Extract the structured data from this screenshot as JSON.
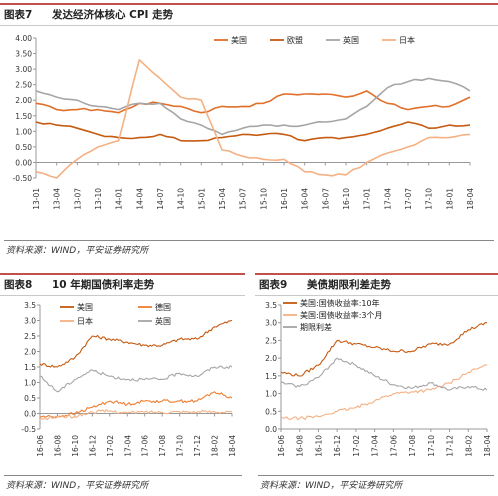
{
  "figure7": {
    "number": "图表7",
    "title": "发达经济体核心 CPI 走势",
    "source": "资料来源：WIND，平安证券研究所"
  },
  "figure8": {
    "number": "图表8",
    "title": "10 年期国债利率走势",
    "source": "资料来源：WIND，平安证券研究所"
  },
  "figure9": {
    "number": "图表9",
    "title": "美债期限利差走势",
    "source": "资料来源：WIND，平安证券研究所"
  },
  "colors": {
    "us": "#e0702a",
    "eu": "#c55a11",
    "uk": "#a6a6a6",
    "jp": "#f4b183",
    "de": "#ed7d31",
    "us10": "#c55a11",
    "us3m": "#f4b183",
    "spread": "#a6a6a6",
    "title_rule": "#c0504d"
  },
  "chart_data": [
    {
      "id": "fig7",
      "type": "line",
      "title": "发达经济体核心 CPI 走势",
      "ylim": [
        -0.5,
        4.0
      ],
      "yticks": [
        "4.00",
        "3.50",
        "3.00",
        "2.50",
        "2.00",
        "1.50",
        "1.00",
        "0.50",
        "0.00",
        "-0.50"
      ],
      "x": [
        "13-01",
        "13-04",
        "13-07",
        "13-10",
        "14-01",
        "14-04",
        "14-07",
        "14-10",
        "15-01",
        "15-04",
        "15-07",
        "15-10",
        "16-01",
        "16-04",
        "16-07",
        "16-10",
        "17-01",
        "17-04",
        "17-07",
        "17-10",
        "18-01",
        "18-04"
      ],
      "legend_position": "top-right",
      "series": [
        {
          "name": "美国",
          "color_key": "us",
          "values": [
            1.9,
            1.7,
            1.7,
            1.7,
            1.6,
            1.9,
            1.9,
            1.8,
            1.6,
            1.8,
            1.8,
            1.9,
            2.2,
            2.2,
            2.2,
            2.1,
            2.3,
            1.9,
            1.7,
            1.8,
            1.8,
            2.1
          ]
        },
        {
          "name": "欧盟",
          "color_key": "eu",
          "values": [
            1.3,
            1.2,
            1.1,
            0.9,
            0.8,
            0.8,
            0.9,
            0.7,
            0.7,
            0.8,
            0.9,
            0.9,
            0.9,
            0.7,
            0.8,
            0.8,
            0.9,
            1.1,
            1.3,
            1.1,
            1.2,
            1.2
          ]
        },
        {
          "name": "英国",
          "color_key": "uk",
          "values": [
            2.3,
            2.1,
            2.0,
            1.8,
            1.7,
            1.9,
            1.9,
            1.4,
            1.2,
            0.9,
            1.1,
            1.2,
            1.2,
            1.2,
            1.3,
            1.4,
            1.8,
            2.4,
            2.6,
            2.7,
            2.6,
            2.3
          ]
        },
        {
          "name": "日本",
          "color_key": "jp",
          "values": [
            -0.3,
            -0.5,
            0.1,
            0.5,
            0.7,
            3.3,
            2.7,
            2.1,
            2.0,
            0.4,
            0.2,
            0.1,
            0.1,
            -0.3,
            -0.4,
            -0.4,
            0.0,
            0.3,
            0.5,
            0.8,
            0.8,
            0.9
          ]
        }
      ]
    },
    {
      "id": "fig8",
      "type": "line",
      "title": "10 年期国债利率走势",
      "ylim": [
        -0.5,
        3.5
      ],
      "yticks": [
        "3.5",
        "3.0",
        "2.5",
        "2.0",
        "1.5",
        "1.0",
        "0.5",
        "0.0",
        "-0.5"
      ],
      "x": [
        "16-06",
        "16-08",
        "16-10",
        "16-12",
        "17-02",
        "17-04",
        "17-06",
        "17-08",
        "17-10",
        "17-12",
        "18-02",
        "18-04"
      ],
      "legend_position": "top-left",
      "series": [
        {
          "name": "美国",
          "color_key": "us10",
          "values": [
            1.6,
            1.5,
            1.8,
            2.5,
            2.4,
            2.3,
            2.2,
            2.2,
            2.4,
            2.4,
            2.8,
            3.0
          ]
        },
        {
          "name": "德国",
          "color_key": "de",
          "values": [
            -0.1,
            -0.1,
            0.0,
            0.2,
            0.4,
            0.3,
            0.4,
            0.4,
            0.4,
            0.4,
            0.7,
            0.5
          ]
        },
        {
          "name": "日本",
          "color_key": "jp",
          "values": [
            -0.2,
            -0.1,
            -0.1,
            0.05,
            0.08,
            0.02,
            0.05,
            0.04,
            0.06,
            0.05,
            0.06,
            0.04
          ]
        },
        {
          "name": "英国",
          "color_key": "uk",
          "values": [
            1.2,
            0.7,
            1.1,
            1.4,
            1.2,
            1.1,
            1.1,
            1.1,
            1.3,
            1.2,
            1.5,
            1.5
          ]
        }
      ]
    },
    {
      "id": "fig9",
      "type": "line",
      "title": "美债期限利差走势",
      "ylim": [
        0.0,
        3.5
      ],
      "yticks": [
        "3.5",
        "3.0",
        "2.5",
        "2.0",
        "1.5",
        "1.0",
        "0.5",
        "0.0"
      ],
      "x": [
        "16-06",
        "16-08",
        "16-10",
        "16-12",
        "17-02",
        "17-04",
        "17-06",
        "17-08",
        "17-10",
        "17-12",
        "18-02",
        "18-04"
      ],
      "legend_position": "top-left",
      "series": [
        {
          "name": "美国:国债收益率:10年",
          "color_key": "us10",
          "values": [
            1.6,
            1.5,
            1.8,
            2.5,
            2.4,
            2.3,
            2.2,
            2.2,
            2.4,
            2.4,
            2.8,
            3.0
          ]
        },
        {
          "name": "美国:国债收益率:3个月",
          "color_key": "us3m",
          "values": [
            0.3,
            0.3,
            0.35,
            0.5,
            0.6,
            0.8,
            1.0,
            1.05,
            1.1,
            1.3,
            1.6,
            1.8
          ]
        },
        {
          "name": "期限利差",
          "color_key": "spread",
          "values": [
            1.3,
            1.2,
            1.45,
            2.0,
            1.8,
            1.5,
            1.25,
            1.15,
            1.3,
            1.1,
            1.2,
            1.1
          ]
        }
      ]
    }
  ]
}
